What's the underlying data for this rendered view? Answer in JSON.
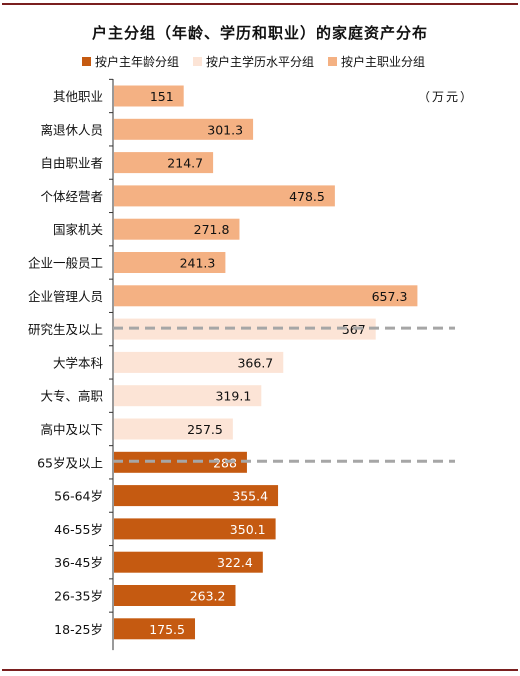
{
  "chart_data": {
    "type": "bar",
    "orientation": "horizontal",
    "title": "户主分组（年龄、学历和职业）的家庭资产分布",
    "unit": "（万元）",
    "legend_position": "top",
    "grid": false,
    "xlim": [
      0,
      1100
    ],
    "series": [
      {
        "name": "按户主职业分组",
        "color": "#f4b183",
        "categories": [
          "其他职业",
          "离退休人员",
          "自由职业者",
          "个体经营者",
          "国家机关",
          "企业一般员工",
          "企业管理人员"
        ],
        "values": [
          151,
          301.3,
          214.7,
          478.5,
          271.8,
          241.3,
          657.3
        ],
        "labels": [
          "151",
          "301.3",
          "214.7",
          "478.5",
          "271.8",
          "241.3",
          "657.3"
        ]
      },
      {
        "name": "按户主学历水平分组",
        "color": "#fce4d6",
        "categories": [
          "研究生及以上",
          "大学本科",
          "大专、高职",
          "高中及以下"
        ],
        "values": [
          567,
          366.7,
          319.1,
          257.5
        ],
        "labels": [
          "567",
          "366.7",
          "319.1",
          "257.5"
        ]
      },
      {
        "name": "按户主年龄分组",
        "color": "#c55a11",
        "categories": [
          "65岁及以上",
          "56-64岁",
          "46-55岁",
          "36-45岁",
          "26-35岁",
          "18-25岁"
        ],
        "values": [
          288,
          355.4,
          350.1,
          322.4,
          263.2,
          175.5
        ],
        "labels": [
          "288",
          "355.4",
          "350.1",
          "322.4",
          "263.2",
          "175.5"
        ]
      }
    ],
    "legend_order": [
      "按户主年龄分组",
      "按户主学历水平分组",
      "按户主职业分组"
    ]
  }
}
